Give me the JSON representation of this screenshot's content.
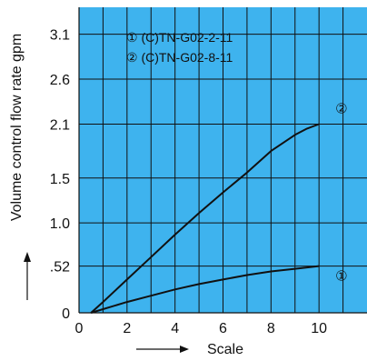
{
  "chart_data": {
    "type": "line",
    "xlabel": "Scale",
    "ylabel": "Volume control flow rate gpm",
    "xlim": [
      0,
      12
    ],
    "ylim": [
      0,
      3.4
    ],
    "x_ticks": [
      0,
      2,
      4,
      6,
      8,
      10
    ],
    "x_tick_labels": [
      "0",
      "2",
      "4",
      "6",
      "8",
      "10"
    ],
    "y_ticks": [
      0,
      0.52,
      1.0,
      1.5,
      2.1,
      2.6,
      3.1
    ],
    "y_tick_labels": [
      "0",
      ".52",
      "1.0",
      "1.5",
      "2.1",
      "2.6",
      "3.1"
    ],
    "grid": true,
    "background_color": "#3EB3EE",
    "line_color": "#111111",
    "legend_position": "top-left",
    "series": [
      {
        "name": "① (C)TN-G02-2-11",
        "marker": "①",
        "x": [
          0.5,
          1,
          2,
          3,
          4,
          5,
          6,
          7,
          8,
          9,
          10
        ],
        "y": [
          0,
          0.04,
          0.12,
          0.19,
          0.26,
          0.32,
          0.37,
          0.42,
          0.46,
          0.49,
          0.52
        ]
      },
      {
        "name": "② (C)TN-G02-8-11",
        "marker": "②",
        "x": [
          0.5,
          1,
          2,
          3,
          4,
          5,
          6,
          7,
          8,
          9,
          9.5,
          10
        ],
        "y": [
          0,
          0.12,
          0.37,
          0.62,
          0.87,
          1.11,
          1.34,
          1.56,
          1.8,
          1.98,
          2.05,
          2.1
        ]
      }
    ]
  }
}
